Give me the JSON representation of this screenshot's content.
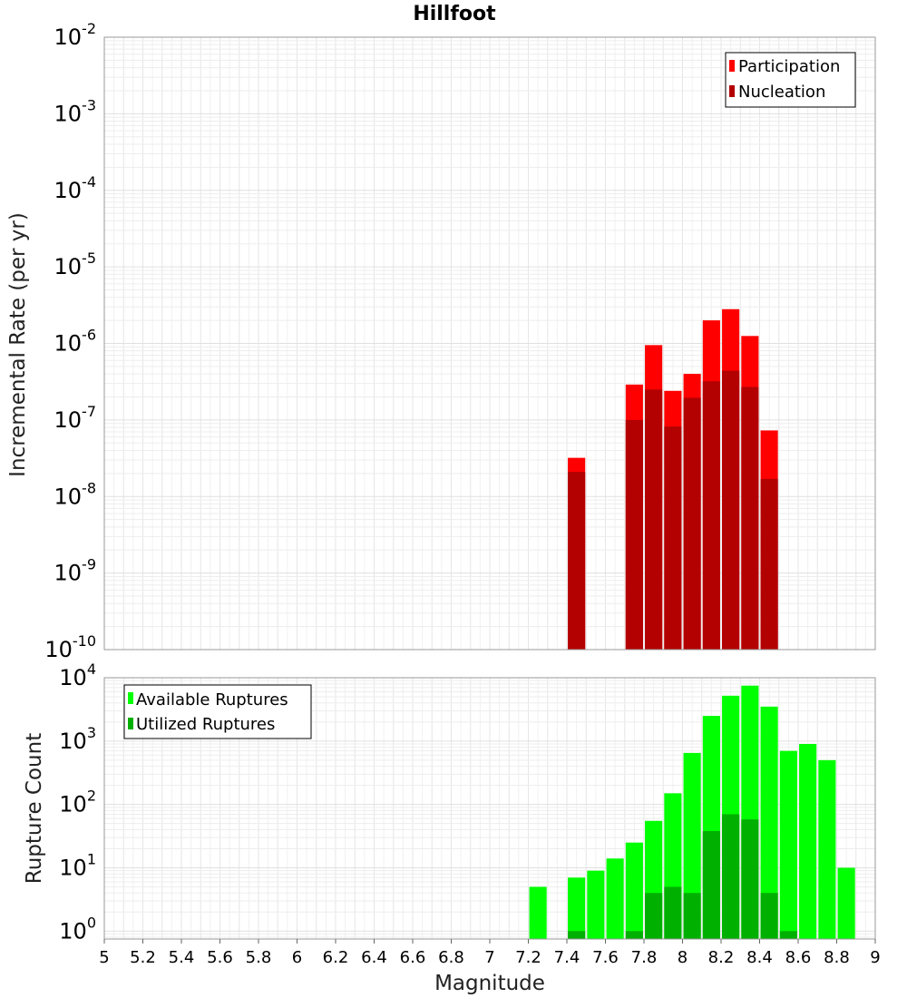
{
  "title": "Hillfoot",
  "chart_data": [
    {
      "type": "bar",
      "ylabel": "Incremental Rate (per yr)",
      "yscale": "log",
      "ylim": [
        1e-10,
        0.01
      ],
      "ytick_exponents": [
        "-10",
        "-9",
        "-8",
        "-7",
        "-6",
        "-5",
        "-4",
        "-3",
        "-2"
      ],
      "xlim": [
        5,
        9
      ],
      "grid": true,
      "legend_position": "top-right",
      "series": [
        {
          "name": "Participation",
          "color": "#ff0000",
          "x": [
            7.45,
            7.75,
            7.85,
            7.95,
            8.05,
            8.15,
            8.25,
            8.35,
            8.45
          ],
          "values": [
            3.2e-08,
            2.9e-07,
            9.5e-07,
            2.4e-07,
            4e-07,
            2e-06,
            2.8e-06,
            1.25e-06,
            7.3e-08
          ]
        },
        {
          "name": "Nucleation",
          "color": "#b30000",
          "x": [
            7.45,
            7.75,
            7.85,
            7.95,
            8.05,
            8.15,
            8.25,
            8.35,
            8.45
          ],
          "values": [
            2.1e-08,
            1e-07,
            2.5e-07,
            8.2e-08,
            1.95e-07,
            3.2e-07,
            4.4e-07,
            2.7e-07,
            1.7e-08
          ]
        }
      ]
    },
    {
      "type": "bar",
      "ylabel": "Rupture Count",
      "xlabel": "Magnitude",
      "yscale": "log",
      "ylim": [
        0.75,
        10000
      ],
      "ytick_exponents": [
        "0",
        "1",
        "2",
        "3",
        "4"
      ],
      "xlim": [
        5,
        9
      ],
      "xticks": [
        "5",
        "5.2",
        "5.4",
        "5.6",
        "5.8",
        "6",
        "6.2",
        "6.4",
        "6.6",
        "6.8",
        "7",
        "7.2",
        "7.4",
        "7.6",
        "7.8",
        "8",
        "8.2",
        "8.4",
        "8.6",
        "8.8",
        "9"
      ],
      "grid": true,
      "legend_position": "top-left",
      "series": [
        {
          "name": "Available Ruptures",
          "color": "#00ff00",
          "x": [
            7.25,
            7.45,
            7.55,
            7.65,
            7.75,
            7.85,
            7.95,
            8.05,
            8.15,
            8.25,
            8.35,
            8.45,
            8.55,
            8.65,
            8.75,
            8.85
          ],
          "values": [
            5,
            7,
            9,
            14,
            25,
            55,
            150,
            650,
            2500,
            5200,
            7500,
            3500,
            700,
            900,
            500,
            10
          ]
        },
        {
          "name": "Utilized Ruptures",
          "color": "#00b000",
          "x": [
            7.45,
            7.75,
            7.85,
            7.95,
            8.05,
            8.15,
            8.25,
            8.35,
            8.45,
            8.55
          ],
          "values": [
            1,
            1,
            4,
            5,
            4,
            38,
            70,
            58,
            4,
            1
          ]
        }
      ]
    }
  ]
}
